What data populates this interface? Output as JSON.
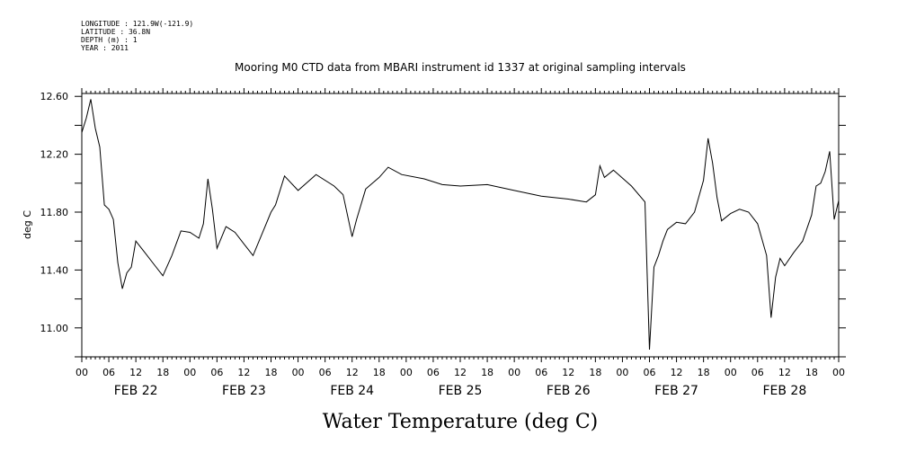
{
  "metadata": {
    "longitude": "LONGITUDE : 121.9W(-121.9)",
    "latitude": "LATITUDE : 36.8N",
    "depth": "DEPTH (m) : 1",
    "year": "YEAR : 2011"
  },
  "chart_data": {
    "type": "line",
    "title": "Mooring M0 CTD data from MBARI instrument id 1337 at original sampling intervals",
    "xlabel": "Water Temperature (deg C)",
    "ylabel": "deg C",
    "xlim": [
      "2011-02-22T00:00",
      "2011-03-01T00:00"
    ],
    "ylim": [
      10.8,
      12.62
    ],
    "yticks": [
      11.0,
      11.4,
      11.8,
      12.2,
      12.6
    ],
    "ytick_labels": [
      "11.00",
      "11.40",
      "11.80",
      "12.20",
      "12.60"
    ],
    "xtick_hour_labels": [
      "00",
      "06",
      "12",
      "18",
      "00",
      "06",
      "12",
      "18",
      "00",
      "06",
      "12",
      "18",
      "00",
      "06",
      "12",
      "18",
      "00",
      "06",
      "12",
      "18",
      "00",
      "06",
      "12",
      "18",
      "00",
      "06",
      "12",
      "18",
      "00"
    ],
    "day_labels": [
      "FEB 22",
      "FEB 23",
      "FEB 24",
      "FEB 25",
      "FEB 26",
      "FEB 27",
      "FEB 28"
    ],
    "grid": false,
    "series": [
      {
        "x": [
          "2011-02-22T00:00",
          "2011-02-22T01:00",
          "2011-02-22T02:00",
          "2011-02-22T03:00",
          "2011-02-22T04:00",
          "2011-02-22T05:00",
          "2011-02-22T06:00",
          "2011-02-22T07:00",
          "2011-02-22T08:00",
          "2011-02-22T09:00",
          "2011-02-22T10:00",
          "2011-02-22T11:00",
          "2011-02-22T12:00",
          "2011-02-22T14:00",
          "2011-02-22T16:00",
          "2011-02-22T18:00",
          "2011-02-22T20:00",
          "2011-02-22T22:00",
          "2011-02-23T00:00",
          "2011-02-23T02:00",
          "2011-02-23T03:00",
          "2011-02-23T04:00",
          "2011-02-23T05:00",
          "2011-02-23T06:00",
          "2011-02-23T08:00",
          "2011-02-23T10:00",
          "2011-02-23T12:00",
          "2011-02-23T14:00",
          "2011-02-23T16:00",
          "2011-02-23T18:00",
          "2011-02-23T19:00",
          "2011-02-23T21:00",
          "2011-02-24T00:00",
          "2011-02-24T04:00",
          "2011-02-24T08:00",
          "2011-02-24T10:00",
          "2011-02-24T12:00",
          "2011-02-24T13:00",
          "2011-02-24T15:00",
          "2011-02-24T18:00",
          "2011-02-24T20:00",
          "2011-02-24T23:00",
          "2011-02-25T04:00",
          "2011-02-25T08:00",
          "2011-02-25T12:00",
          "2011-02-25T18:00",
          "2011-02-26T00:00",
          "2011-02-26T06:00",
          "2011-02-26T12:00",
          "2011-02-26T16:00",
          "2011-02-26T18:00",
          "2011-02-26T19:00",
          "2011-02-26T20:00",
          "2011-02-26T22:00",
          "2011-02-27T02:00",
          "2011-02-27T05:00",
          "2011-02-27T06:00",
          "2011-02-27T07:00",
          "2011-02-27T08:00",
          "2011-02-27T09:00",
          "2011-02-27T10:00",
          "2011-02-27T12:00",
          "2011-02-27T14:00",
          "2011-02-27T16:00",
          "2011-02-27T18:00",
          "2011-02-27T19:00",
          "2011-02-27T20:00",
          "2011-02-27T21:00",
          "2011-02-27T22:00",
          "2011-02-28T00:00",
          "2011-02-28T02:00",
          "2011-02-28T04:00",
          "2011-02-28T06:00",
          "2011-02-28T08:00",
          "2011-02-28T09:00",
          "2011-02-28T10:00",
          "2011-02-28T11:00",
          "2011-02-28T12:00",
          "2011-02-28T14:00",
          "2011-02-28T16:00",
          "2011-02-28T18:00",
          "2011-02-28T19:00",
          "2011-02-28T20:00",
          "2011-02-28T21:00",
          "2011-02-28T22:00",
          "2011-02-28T23:00",
          "2011-03-01T00:00"
        ],
        "values": [
          12.35,
          12.45,
          12.58,
          12.38,
          12.25,
          11.85,
          11.82,
          11.75,
          11.45,
          11.27,
          11.38,
          11.42,
          11.6,
          11.52,
          11.44,
          11.36,
          11.5,
          11.67,
          11.66,
          11.62,
          11.72,
          12.03,
          11.82,
          11.55,
          11.7,
          11.66,
          11.58,
          11.5,
          11.65,
          11.8,
          11.85,
          12.05,
          11.95,
          12.06,
          11.98,
          11.92,
          11.63,
          11.75,
          11.96,
          12.04,
          12.11,
          12.06,
          12.03,
          11.99,
          11.98,
          11.99,
          11.95,
          11.91,
          11.89,
          11.87,
          11.92,
          12.12,
          12.04,
          12.09,
          11.98,
          11.87,
          10.85,
          11.42,
          11.5,
          11.6,
          11.68,
          11.73,
          11.72,
          11.8,
          12.02,
          12.31,
          12.14,
          11.9,
          11.74,
          11.79,
          11.82,
          11.8,
          11.72,
          11.5,
          11.07,
          11.35,
          11.48,
          11.43,
          11.52,
          11.6,
          11.78,
          11.98,
          12.0,
          12.08,
          12.22,
          11.75,
          11.88
        ]
      }
    ]
  }
}
